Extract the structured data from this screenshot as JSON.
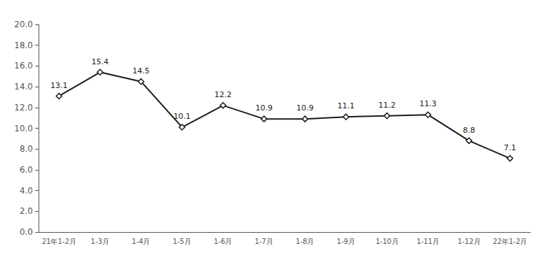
{
  "chart_data": {
    "type": "line",
    "categories": [
      "21年1-2月",
      "1-3月",
      "1-4月",
      "1-5月",
      "1-6月",
      "1-7月",
      "1-8月",
      "1-9月",
      "1-10月",
      "1-11月",
      "1-12月",
      "22年1-2月"
    ],
    "values": [
      13.1,
      15.4,
      14.5,
      10.1,
      12.2,
      10.9,
      10.9,
      11.1,
      11.2,
      11.3,
      8.8,
      7.1
    ],
    "color": "#1a1a1a",
    "marker": "diamond",
    "ylim": [
      0.0,
      20.0
    ],
    "yticks": [
      {
        "value": 0.0,
        "label": "0.0"
      },
      {
        "value": 2.0,
        "label": "2.0"
      },
      {
        "value": 4.0,
        "label": "4.0"
      },
      {
        "value": 6.0,
        "label": "6.0"
      },
      {
        "value": 8.0,
        "label": "8.0"
      },
      {
        "value": 10.0,
        "label": "10.0"
      },
      {
        "value": 12.0,
        "label": "12.0"
      },
      {
        "value": 14.0,
        "label": "14.0"
      },
      {
        "value": 16.0,
        "label": "16.0"
      },
      {
        "value": 18.0,
        "label": "18.0"
      },
      {
        "value": 20.0,
        "label": "20.0"
      }
    ],
    "grid": false,
    "data_labels": true
  }
}
